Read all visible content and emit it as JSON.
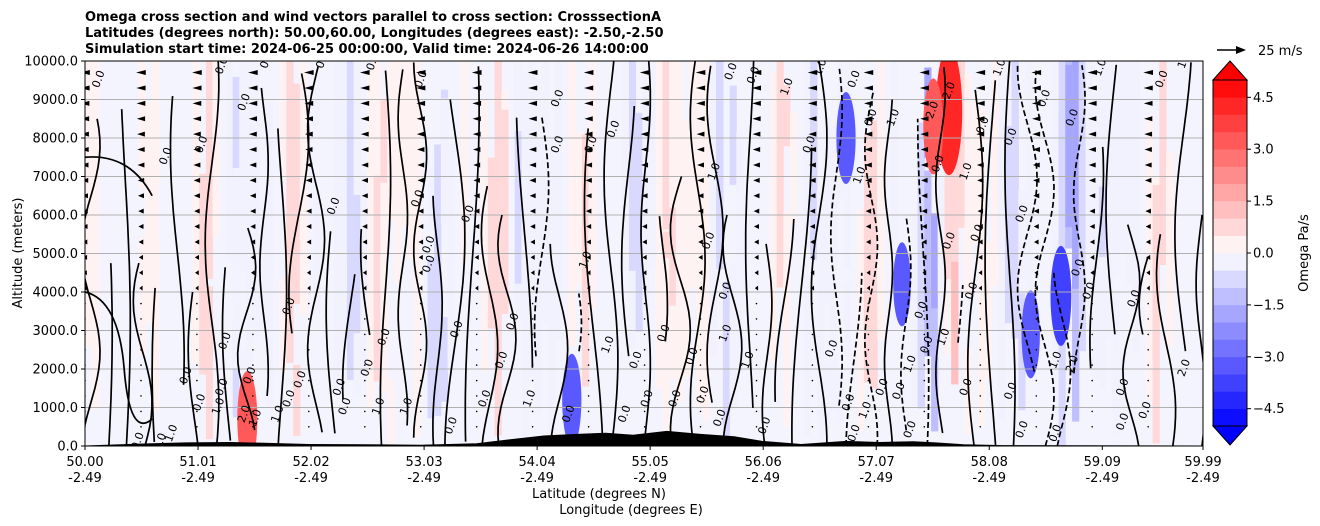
{
  "chart_data": {
    "type": "heatmap",
    "title": [
      "Omega cross section and wind vectors parallel to cross section: CrosssectionA",
      "Latitudes (degrees north): 50.00,60.00, Longitudes (degrees east): -2.50,-2.50",
      "Simulation start time: 2024-06-25 00:00:00, Valid time: 2024-06-26 14:00:00"
    ],
    "ylabel": "Altitude (meters)",
    "xlabel_lines": [
      "Latitude (degrees N)",
      "Longitude (degrees E)"
    ],
    "ylim": [
      0,
      10000
    ],
    "yticks": [
      "0.0",
      "1000.0",
      "2000.0",
      "3000.0",
      "4000.0",
      "5000.0",
      "6000.0",
      "7000.0",
      "8000.0",
      "9000.0",
      "10000.0"
    ],
    "ytick_values": [
      0,
      1000,
      2000,
      3000,
      4000,
      5000,
      6000,
      7000,
      8000,
      9000,
      10000
    ],
    "xlim": [
      50.0,
      59.99
    ],
    "xtick_values": [
      50.0,
      51.01,
      52.02,
      53.03,
      54.04,
      55.05,
      56.06,
      57.07,
      58.08,
      59.09,
      59.99
    ],
    "xticks_lat": [
      "50.00",
      "51.01",
      "52.02",
      "53.03",
      "54.04",
      "55.05",
      "56.06",
      "57.07",
      "58.08",
      "59.09",
      "59.99"
    ],
    "xticks_lon": [
      "-2.49",
      "-2.49",
      "-2.49",
      "-2.49",
      "-2.49",
      "-2.49",
      "-2.49",
      "-2.49",
      "-2.49",
      "-2.49",
      "-2.49"
    ],
    "grid": "horizontal",
    "colorbar": {
      "label": "Omega Pa/s",
      "range": [
        -5,
        5
      ],
      "step": 0.5,
      "ticks": [
        "4.5",
        "3.0",
        "1.5",
        "0.0",
        "−1.5",
        "−3.0",
        "−4.5"
      ],
      "tick_values": [
        4.5,
        3.0,
        1.5,
        0.0,
        -1.5,
        -3.0,
        -4.5
      ],
      "cmap": "bwr",
      "extend": "both"
    },
    "quiver_key": "25 m/s",
    "contour_levels": [
      -2.0,
      -1.0,
      0.0,
      1.0,
      2.0
    ],
    "contour_labels": [
      {
        "lat": 50.15,
        "alt": 9500,
        "text": "0.0"
      },
      {
        "lat": 51.25,
        "alt": 9850,
        "text": "0.0"
      },
      {
        "lat": 51.65,
        "alt": 10000,
        "text": "0.0"
      },
      {
        "lat": 52.15,
        "alt": 10000,
        "text": "0.0"
      },
      {
        "lat": 52.6,
        "alt": 9950,
        "text": "0.0"
      },
      {
        "lat": 50.75,
        "alt": 7500,
        "text": "0.0"
      },
      {
        "lat": 51.45,
        "alt": 8900,
        "text": "0.0"
      },
      {
        "lat": 51.07,
        "alt": 7800,
        "text": "0.0"
      },
      {
        "lat": 52.25,
        "alt": 6200,
        "text": "0.0"
      },
      {
        "lat": 53.03,
        "alt": 9500,
        "text": "0.0"
      },
      {
        "lat": 53.0,
        "alt": 6400,
        "text": "0.0"
      },
      {
        "lat": 53.1,
        "alt": 5200,
        "text": "0.0"
      },
      {
        "lat": 53.1,
        "alt": 4700,
        "text": "0.0"
      },
      {
        "lat": 53.45,
        "alt": 6000,
        "text": "0.0"
      },
      {
        "lat": 53.35,
        "alt": 3000,
        "text": "0.0"
      },
      {
        "lat": 52.7,
        "alt": 2800,
        "text": "0.0"
      },
      {
        "lat": 51.85,
        "alt": 3600,
        "text": "0.0"
      },
      {
        "lat": 51.28,
        "alt": 2700,
        "text": "0.0"
      },
      {
        "lat": 51.25,
        "alt": 1500,
        "text": "0.0"
      },
      {
        "lat": 51.5,
        "alt": 1800,
        "text": "0.0"
      },
      {
        "lat": 51.45,
        "alt": 800,
        "text": "2.0"
      },
      {
        "lat": 51.55,
        "alt": 700,
        "text": "1.0"
      },
      {
        "lat": 51.75,
        "alt": 800,
        "text": "1.0"
      },
      {
        "lat": 51.85,
        "alt": 1200,
        "text": "0.0"
      },
      {
        "lat": 51.95,
        "alt": 1700,
        "text": "0.0"
      },
      {
        "lat": 52.3,
        "alt": 1500,
        "text": "0.0"
      },
      {
        "lat": 52.35,
        "alt": 1000,
        "text": "0.0"
      },
      {
        "lat": 52.55,
        "alt": 2000,
        "text": "0.0"
      },
      {
        "lat": 52.65,
        "alt": 1000,
        "text": "1.0"
      },
      {
        "lat": 52.9,
        "alt": 1000,
        "text": "1.0"
      },
      {
        "lat": 51.22,
        "alt": 1000,
        "text": "1.0"
      },
      {
        "lat": 51.05,
        "alt": 1100,
        "text": "0.0"
      },
      {
        "lat": 50.93,
        "alt": 1800,
        "text": "0.0"
      },
      {
        "lat": 50.8,
        "alt": 300,
        "text": "1.0"
      },
      {
        "lat": 50.5,
        "alt": 100,
        "text": "0.0"
      },
      {
        "lat": 50.7,
        "alt": 80,
        "text": "0.0"
      },
      {
        "lat": 53.85,
        "alt": 3200,
        "text": "0.0"
      },
      {
        "lat": 54.25,
        "alt": 9000,
        "text": "0.0"
      },
      {
        "lat": 54.25,
        "alt": 7800,
        "text": "0.0"
      },
      {
        "lat": 54.55,
        "alt": 7800,
        "text": "0.0"
      },
      {
        "lat": 54.75,
        "alt": 8200,
        "text": "0.0"
      },
      {
        "lat": 55.65,
        "alt": 7100,
        "text": "1.0"
      },
      {
        "lat": 55.6,
        "alt": 5300,
        "text": "0.0"
      },
      {
        "lat": 55.75,
        "alt": 4000,
        "text": "0.0"
      },
      {
        "lat": 55.8,
        "alt": 9700,
        "text": "0.0"
      },
      {
        "lat": 56.0,
        "alt": 9600,
        "text": "0.0"
      },
      {
        "lat": 56.6,
        "alt": 9800,
        "text": "1.0"
      },
      {
        "lat": 56.3,
        "alt": 9300,
        "text": "1.0"
      },
      {
        "lat": 56.5,
        "alt": 7800,
        "text": "0.0"
      },
      {
        "lat": 56.9,
        "alt": 9500,
        "text": "0.0"
      },
      {
        "lat": 57.05,
        "alt": 8500,
        "text": "0.0"
      },
      {
        "lat": 57.25,
        "alt": 8500,
        "text": "1.0"
      },
      {
        "lat": 56.95,
        "alt": 7000,
        "text": "1.0"
      },
      {
        "lat": 57.75,
        "alt": 9200,
        "text": "2.0"
      },
      {
        "lat": 57.6,
        "alt": 8700,
        "text": "2.0"
      },
      {
        "lat": 57.65,
        "alt": 7300,
        "text": "0.0"
      },
      {
        "lat": 57.9,
        "alt": 7100,
        "text": "1.0"
      },
      {
        "lat": 58.05,
        "alt": 8300,
        "text": "0.0"
      },
      {
        "lat": 58.2,
        "alt": 9800,
        "text": "1.0"
      },
      {
        "lat": 58.3,
        "alt": 8000,
        "text": "0.0"
      },
      {
        "lat": 58.6,
        "alt": 9000,
        "text": "0.0"
      },
      {
        "lat": 58.85,
        "alt": 8500,
        "text": "0.0"
      },
      {
        "lat": 59.1,
        "alt": 9800,
        "text": "1.0"
      },
      {
        "lat": 59.65,
        "alt": 9500,
        "text": "0.0"
      },
      {
        "lat": 59.85,
        "alt": 10000,
        "text": "1.0"
      },
      {
        "lat": 58.0,
        "alt": 5500,
        "text": "0.0"
      },
      {
        "lat": 58.4,
        "alt": 6000,
        "text": "0.0"
      },
      {
        "lat": 57.75,
        "alt": 5300,
        "text": "0.0"
      },
      {
        "lat": 57.95,
        "alt": 4000,
        "text": "0.0"
      },
      {
        "lat": 57.5,
        "alt": 3500,
        "text": "0.0"
      },
      {
        "lat": 57.55,
        "alt": 2600,
        "text": "0.0"
      },
      {
        "lat": 57.7,
        "alt": 2800,
        "text": "1.0"
      },
      {
        "lat": 57.4,
        "alt": 2100,
        "text": "1.0"
      },
      {
        "lat": 57.15,
        "alt": 1500,
        "text": "0.0"
      },
      {
        "lat": 57.0,
        "alt": 900,
        "text": "1.0"
      },
      {
        "lat": 56.85,
        "alt": 1100,
        "text": "0.0"
      },
      {
        "lat": 56.7,
        "alt": 2500,
        "text": "0.0"
      },
      {
        "lat": 57.3,
        "alt": 1400,
        "text": "0.0"
      },
      {
        "lat": 57.9,
        "alt": 1500,
        "text": "0.0"
      },
      {
        "lat": 58.3,
        "alt": 1400,
        "text": "0.0"
      },
      {
        "lat": 58.85,
        "alt": 2100,
        "text": "2.0"
      },
      {
        "lat": 58.7,
        "alt": 2200,
        "text": "1.0"
      },
      {
        "lat": 59.0,
        "alt": 4000,
        "text": "0.0"
      },
      {
        "lat": 58.9,
        "alt": 4600,
        "text": "0.0"
      },
      {
        "lat": 59.4,
        "alt": 3800,
        "text": "0.0"
      },
      {
        "lat": 59.3,
        "alt": 1500,
        "text": "0.0"
      },
      {
        "lat": 59.5,
        "alt": 900,
        "text": "0.0"
      },
      {
        "lat": 59.3,
        "alt": 600,
        "text": "0.0"
      },
      {
        "lat": 59.85,
        "alt": 2000,
        "text": "2.0"
      },
      {
        "lat": 58.7,
        "alt": 300,
        "text": "0.0"
      },
      {
        "lat": 58.4,
        "alt": 400,
        "text": "0.0"
      },
      {
        "lat": 55.95,
        "alt": 2200,
        "text": "1.0"
      },
      {
        "lat": 55.75,
        "alt": 2900,
        "text": "1.0"
      },
      {
        "lat": 55.45,
        "alt": 2300,
        "text": "0.0"
      },
      {
        "lat": 55.2,
        "alt": 2900,
        "text": "0.0"
      },
      {
        "lat": 54.5,
        "alt": 4800,
        "text": "1.0"
      },
      {
        "lat": 54.7,
        "alt": 2600,
        "text": "1.0"
      },
      {
        "lat": 54.95,
        "alt": 2200,
        "text": "0.0"
      },
      {
        "lat": 55.3,
        "alt": 1200,
        "text": "0.0"
      },
      {
        "lat": 55.05,
        "alt": 1200,
        "text": "0.0"
      },
      {
        "lat": 55.55,
        "alt": 1300,
        "text": "0.0"
      },
      {
        "lat": 54.0,
        "alt": 1200,
        "text": "1.0"
      },
      {
        "lat": 53.75,
        "alt": 2200,
        "text": "0.0"
      },
      {
        "lat": 53.6,
        "alt": 1200,
        "text": "0.0"
      },
      {
        "lat": 53.3,
        "alt": 500,
        "text": "0.0"
      },
      {
        "lat": 54.35,
        "alt": 800,
        "text": "0.0"
      },
      {
        "lat": 54.85,
        "alt": 800,
        "text": "0.0"
      },
      {
        "lat": 55.7,
        "alt": 700,
        "text": "0.0"
      },
      {
        "lat": 56.1,
        "alt": 500,
        "text": "0.0"
      },
      {
        "lat": 56.9,
        "alt": 300,
        "text": "0.0"
      },
      {
        "lat": 57.4,
        "alt": 400,
        "text": "0.0"
      }
    ]
  }
}
